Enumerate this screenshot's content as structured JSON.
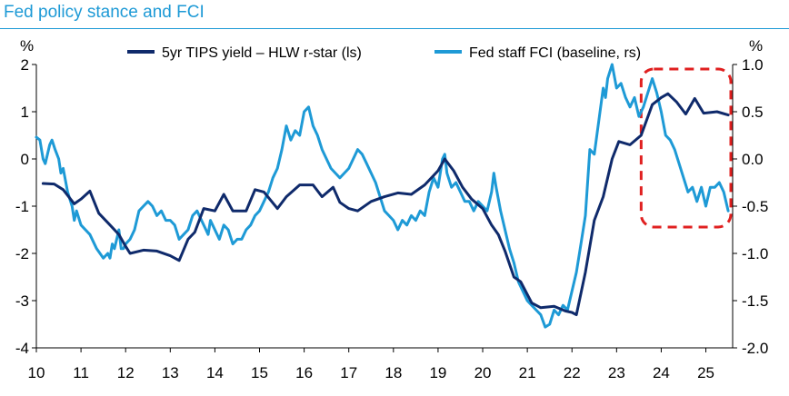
{
  "chart_data": {
    "type": "line",
    "title": "Fed policy stance and FCI",
    "y_left_unit": "%",
    "y_right_unit": "%",
    "y_left_range": [
      -4,
      2
    ],
    "y_right_range": [
      -2.0,
      1.0
    ],
    "x_range": [
      2010,
      2025.6
    ],
    "x_ticks": [
      10,
      11,
      12,
      13,
      14,
      15,
      16,
      17,
      18,
      19,
      20,
      21,
      22,
      23,
      24,
      25
    ],
    "y_left_ticks": [
      2,
      1,
      0,
      -1,
      -2,
      -3,
      -4
    ],
    "y_right_ticks": [
      "1.0",
      "0.5",
      "0.0",
      "-0.5",
      "-1.0",
      "-1.5",
      "-2.0"
    ],
    "grid": false,
    "legend_position": "top",
    "annotation": "red dashed box highlighting 2023.5–2025.5",
    "series": [
      {
        "name": "5yr TIPS yield – HLW r-star (ls)",
        "axis": "left",
        "color": "#0f2a6b",
        "points": [
          [
            2010.15,
            -0.52
          ],
          [
            2010.4,
            -0.53
          ],
          [
            2010.6,
            -0.65
          ],
          [
            2010.85,
            -0.95
          ],
          [
            2011.0,
            -0.85
          ],
          [
            2011.2,
            -0.68
          ],
          [
            2011.4,
            -1.15
          ],
          [
            2011.6,
            -1.35
          ],
          [
            2011.85,
            -1.6
          ],
          [
            2012.0,
            -1.85
          ],
          [
            2012.1,
            -2.0
          ],
          [
            2012.4,
            -1.93
          ],
          [
            2012.7,
            -1.95
          ],
          [
            2013.0,
            -2.05
          ],
          [
            2013.2,
            -2.15
          ],
          [
            2013.4,
            -1.7
          ],
          [
            2013.55,
            -1.55
          ],
          [
            2013.75,
            -1.05
          ],
          [
            2014.0,
            -1.1
          ],
          [
            2014.2,
            -0.75
          ],
          [
            2014.4,
            -1.1
          ],
          [
            2014.7,
            -1.1
          ],
          [
            2014.9,
            -0.65
          ],
          [
            2015.1,
            -0.7
          ],
          [
            2015.4,
            -1.05
          ],
          [
            2015.6,
            -0.8
          ],
          [
            2015.9,
            -0.55
          ],
          [
            2016.2,
            -0.55
          ],
          [
            2016.4,
            -0.8
          ],
          [
            2016.65,
            -0.6
          ],
          [
            2016.8,
            -0.92
          ],
          [
            2017.0,
            -1.05
          ],
          [
            2017.2,
            -1.1
          ],
          [
            2017.5,
            -0.9
          ],
          [
            2017.8,
            -0.8
          ],
          [
            2018.1,
            -0.72
          ],
          [
            2018.4,
            -0.75
          ],
          [
            2018.7,
            -0.55
          ],
          [
            2019.0,
            -0.25
          ],
          [
            2019.15,
            -0.0
          ],
          [
            2019.35,
            -0.25
          ],
          [
            2019.55,
            -0.6
          ],
          [
            2019.75,
            -0.85
          ],
          [
            2020.0,
            -1.05
          ],
          [
            2020.2,
            -1.4
          ],
          [
            2020.35,
            -1.6
          ],
          [
            2020.5,
            -1.95
          ],
          [
            2020.7,
            -2.5
          ],
          [
            2020.85,
            -2.6
          ],
          [
            2021.1,
            -3.05
          ],
          [
            2021.3,
            -3.15
          ],
          [
            2021.6,
            -3.12
          ],
          [
            2021.85,
            -3.22
          ],
          [
            2022.0,
            -3.25
          ],
          [
            2022.1,
            -3.3
          ],
          [
            2022.3,
            -2.4
          ],
          [
            2022.5,
            -1.3
          ],
          [
            2022.7,
            -0.8
          ],
          [
            2022.9,
            0.0
          ],
          [
            2023.05,
            0.37
          ],
          [
            2023.3,
            0.3
          ],
          [
            2023.55,
            0.5
          ],
          [
            2023.8,
            1.15
          ],
          [
            2024.0,
            1.3
          ],
          [
            2024.15,
            1.38
          ],
          [
            2024.35,
            1.2
          ],
          [
            2024.55,
            0.95
          ],
          [
            2024.75,
            1.28
          ],
          [
            2024.95,
            0.97
          ],
          [
            2025.25,
            1.0
          ],
          [
            2025.5,
            0.93
          ]
        ]
      },
      {
        "name": "Fed staff FCI (baseline, rs)",
        "axis": "right",
        "color": "#1e9ad6",
        "points": [
          [
            2010.0,
            0.23
          ],
          [
            2010.08,
            0.2
          ],
          [
            2010.15,
            0.0
          ],
          [
            2010.2,
            -0.05
          ],
          [
            2010.3,
            0.15
          ],
          [
            2010.35,
            0.2
          ],
          [
            2010.42,
            0.1
          ],
          [
            2010.5,
            0.0
          ],
          [
            2010.55,
            -0.15
          ],
          [
            2010.6,
            -0.1
          ],
          [
            2010.7,
            -0.35
          ],
          [
            2010.8,
            -0.5
          ],
          [
            2010.85,
            -0.65
          ],
          [
            2010.9,
            -0.55
          ],
          [
            2011.0,
            -0.7
          ],
          [
            2011.2,
            -0.8
          ],
          [
            2011.35,
            -0.95
          ],
          [
            2011.5,
            -1.05
          ],
          [
            2011.6,
            -1.0
          ],
          [
            2011.65,
            -1.05
          ],
          [
            2011.7,
            -0.9
          ],
          [
            2011.75,
            -0.95
          ],
          [
            2011.8,
            -0.85
          ],
          [
            2011.85,
            -0.75
          ],
          [
            2011.9,
            -0.95
          ],
          [
            2011.95,
            -0.95
          ],
          [
            2012.0,
            -0.9
          ],
          [
            2012.1,
            -0.85
          ],
          [
            2012.2,
            -0.75
          ],
          [
            2012.3,
            -0.55
          ],
          [
            2012.4,
            -0.5
          ],
          [
            2012.5,
            -0.45
          ],
          [
            2012.6,
            -0.5
          ],
          [
            2012.7,
            -0.6
          ],
          [
            2012.8,
            -0.55
          ],
          [
            2012.9,
            -0.65
          ],
          [
            2013.0,
            -0.65
          ],
          [
            2013.1,
            -0.7
          ],
          [
            2013.2,
            -0.85
          ],
          [
            2013.3,
            -0.8
          ],
          [
            2013.4,
            -0.75
          ],
          [
            2013.5,
            -0.6
          ],
          [
            2013.6,
            -0.55
          ],
          [
            2013.7,
            -0.65
          ],
          [
            2013.8,
            -0.75
          ],
          [
            2013.85,
            -0.8
          ],
          [
            2013.9,
            -0.65
          ],
          [
            2014.0,
            -0.75
          ],
          [
            2014.1,
            -0.85
          ],
          [
            2014.2,
            -0.7
          ],
          [
            2014.3,
            -0.75
          ],
          [
            2014.4,
            -0.9
          ],
          [
            2014.5,
            -0.85
          ],
          [
            2014.6,
            -0.85
          ],
          [
            2014.7,
            -0.75
          ],
          [
            2014.8,
            -0.7
          ],
          [
            2014.9,
            -0.6
          ],
          [
            2015.0,
            -0.55
          ],
          [
            2015.1,
            -0.45
          ],
          [
            2015.2,
            -0.35
          ],
          [
            2015.3,
            -0.2
          ],
          [
            2015.4,
            -0.1
          ],
          [
            2015.5,
            0.1
          ],
          [
            2015.6,
            0.35
          ],
          [
            2015.7,
            0.2
          ],
          [
            2015.8,
            0.3
          ],
          [
            2015.9,
            0.25
          ],
          [
            2016.0,
            0.5
          ],
          [
            2016.1,
            0.55
          ],
          [
            2016.2,
            0.35
          ],
          [
            2016.3,
            0.25
          ],
          [
            2016.4,
            0.1
          ],
          [
            2016.5,
            0.0
          ],
          [
            2016.6,
            -0.1
          ],
          [
            2016.7,
            -0.15
          ],
          [
            2016.8,
            -0.2
          ],
          [
            2016.9,
            -0.15
          ],
          [
            2017.0,
            -0.1
          ],
          [
            2017.1,
            0.0
          ],
          [
            2017.2,
            0.1
          ],
          [
            2017.3,
            0.05
          ],
          [
            2017.4,
            -0.05
          ],
          [
            2017.5,
            -0.15
          ],
          [
            2017.6,
            -0.25
          ],
          [
            2017.7,
            -0.4
          ],
          [
            2017.8,
            -0.55
          ],
          [
            2017.9,
            -0.6
          ],
          [
            2018.0,
            -0.65
          ],
          [
            2018.1,
            -0.75
          ],
          [
            2018.2,
            -0.65
          ],
          [
            2018.3,
            -0.7
          ],
          [
            2018.4,
            -0.6
          ],
          [
            2018.5,
            -0.65
          ],
          [
            2018.6,
            -0.55
          ],
          [
            2018.7,
            -0.6
          ],
          [
            2018.8,
            -0.35
          ],
          [
            2018.9,
            -0.2
          ],
          [
            2019.0,
            -0.3
          ],
          [
            2019.1,
            0.0
          ],
          [
            2019.15,
            0.05
          ],
          [
            2019.2,
            -0.15
          ],
          [
            2019.3,
            -0.3
          ],
          [
            2019.4,
            -0.25
          ],
          [
            2019.5,
            -0.35
          ],
          [
            2019.6,
            -0.45
          ],
          [
            2019.7,
            -0.45
          ],
          [
            2019.8,
            -0.55
          ],
          [
            2019.9,
            -0.45
          ],
          [
            2020.0,
            -0.5
          ],
          [
            2020.1,
            -0.55
          ],
          [
            2020.2,
            -0.35
          ],
          [
            2020.25,
            -0.15
          ],
          [
            2020.3,
            -0.3
          ],
          [
            2020.4,
            -0.55
          ],
          [
            2020.5,
            -0.75
          ],
          [
            2020.6,
            -0.95
          ],
          [
            2020.7,
            -1.1
          ],
          [
            2020.8,
            -1.3
          ],
          [
            2020.9,
            -1.4
          ],
          [
            2021.0,
            -1.5
          ],
          [
            2021.1,
            -1.55
          ],
          [
            2021.2,
            -1.6
          ],
          [
            2021.3,
            -1.65
          ],
          [
            2021.4,
            -1.78
          ],
          [
            2021.5,
            -1.75
          ],
          [
            2021.6,
            -1.6
          ],
          [
            2021.7,
            -1.65
          ],
          [
            2021.8,
            -1.55
          ],
          [
            2021.9,
            -1.6
          ],
          [
            2022.0,
            -1.4
          ],
          [
            2022.1,
            -1.2
          ],
          [
            2022.2,
            -0.9
          ],
          [
            2022.3,
            -0.6
          ],
          [
            2022.4,
            0.1
          ],
          [
            2022.5,
            0.05
          ],
          [
            2022.6,
            0.4
          ],
          [
            2022.7,
            0.75
          ],
          [
            2022.75,
            0.65
          ],
          [
            2022.8,
            0.85
          ],
          [
            2022.9,
            1.0
          ],
          [
            2023.0,
            0.75
          ],
          [
            2023.1,
            0.8
          ],
          [
            2023.2,
            0.65
          ],
          [
            2023.3,
            0.55
          ],
          [
            2023.4,
            0.65
          ],
          [
            2023.5,
            0.45
          ],
          [
            2023.6,
            0.55
          ],
          [
            2023.7,
            0.7
          ],
          [
            2023.8,
            0.85
          ],
          [
            2023.9,
            0.7
          ],
          [
            2024.0,
            0.5
          ],
          [
            2024.1,
            0.25
          ],
          [
            2024.2,
            0.2
          ],
          [
            2024.3,
            0.1
          ],
          [
            2024.4,
            -0.05
          ],
          [
            2024.5,
            -0.2
          ],
          [
            2024.6,
            -0.35
          ],
          [
            2024.7,
            -0.3
          ],
          [
            2024.8,
            -0.45
          ],
          [
            2024.9,
            -0.3
          ],
          [
            2025.0,
            -0.5
          ],
          [
            2025.1,
            -0.3
          ],
          [
            2025.2,
            -0.3
          ],
          [
            2025.3,
            -0.25
          ],
          [
            2025.4,
            -0.35
          ],
          [
            2025.5,
            -0.55
          ]
        ]
      }
    ]
  }
}
